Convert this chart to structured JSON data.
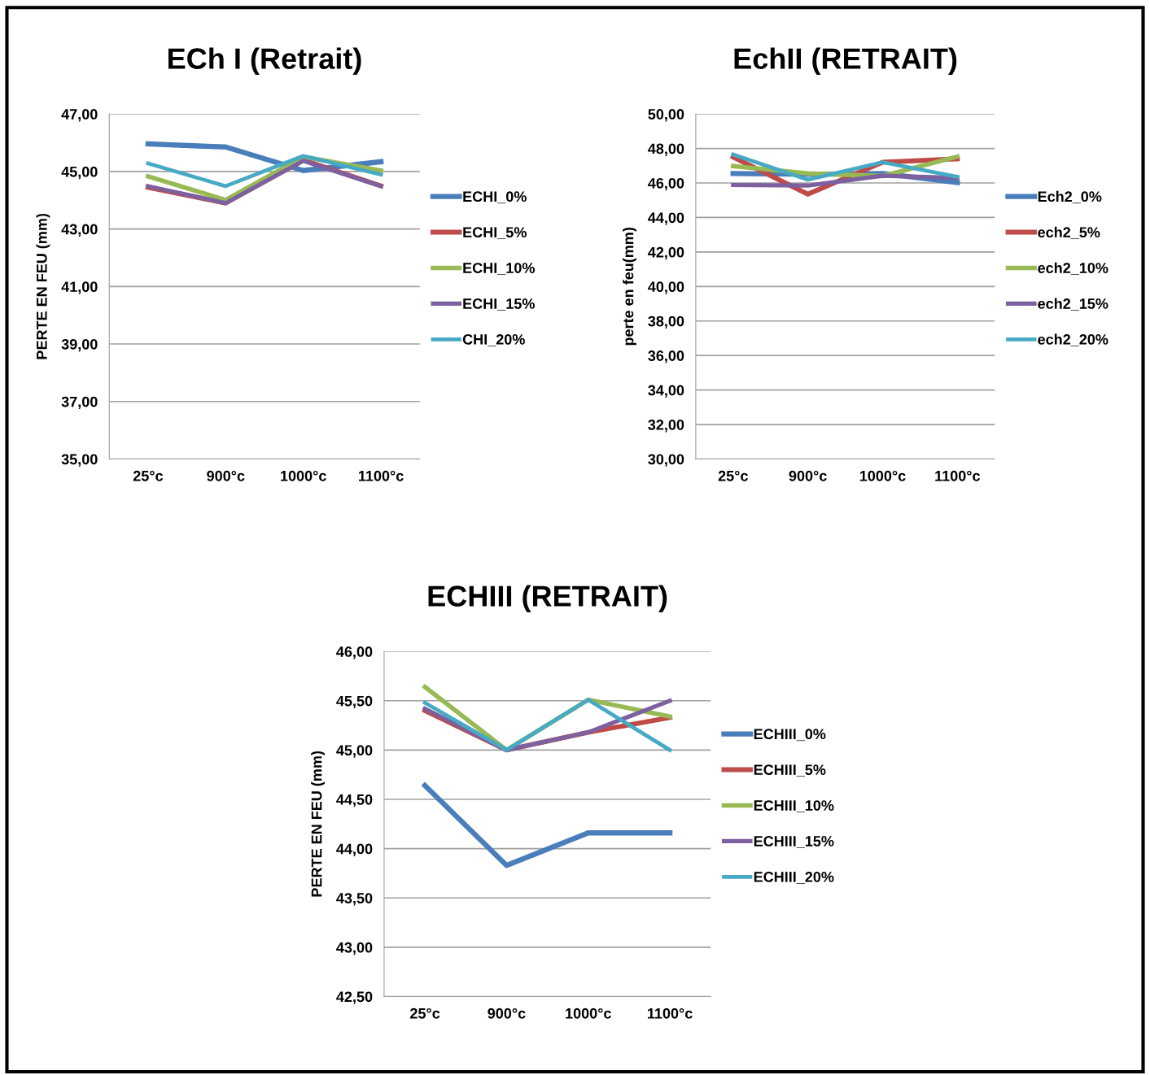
{
  "chart_data": [
    {
      "type": "line",
      "title": "ECh I (Retrait)",
      "ylabel": "PERTE EN FEU (mm)",
      "categories": [
        "25°c",
        "900°c",
        "1000°c",
        "1100°c"
      ],
      "series": [
        {
          "name": "ECHI_0%",
          "color": "#4a7ebb",
          "values": [
            45.96,
            45.85,
            45.03,
            45.34
          ]
        },
        {
          "name": "ECHI_5%",
          "color": "#be4b48",
          "values": [
            44.45,
            43.9,
            45.4,
            44.5
          ]
        },
        {
          "name": "ECHI_10%",
          "color": "#98b954",
          "values": [
            44.83,
            44.01,
            45.51,
            45.03
          ]
        },
        {
          "name": "ECHI_15%",
          "color": "#7d60a0",
          "values": [
            44.49,
            43.9,
            45.37,
            44.49
          ]
        },
        {
          "name": "CHI_20%",
          "color": "#46aac5",
          "values": [
            45.28,
            44.49,
            45.54,
            44.89
          ]
        }
      ],
      "ylim": [
        35,
        47
      ],
      "yticks": [
        {
          "value": 35,
          "label": "35,00"
        },
        {
          "value": 37,
          "label": "37,00"
        },
        {
          "value": 39,
          "label": "39,00"
        },
        {
          "value": 41,
          "label": "41,00"
        },
        {
          "value": 43,
          "label": "43,00"
        },
        {
          "value": 45,
          "label": "45,00"
        },
        {
          "value": 47,
          "label": "47,00"
        }
      ],
      "grid": "y",
      "legend": "right",
      "marker": "none",
      "line_style": "solid"
    },
    {
      "type": "line",
      "title": "EchII (RETRAIT)",
      "ylabel": "perte en feu(mm)",
      "categories": [
        "25°c",
        "900°c",
        "1000°c",
        "1100°c"
      ],
      "series": [
        {
          "name": "Ech2_0%",
          "color": "#4a7ebb",
          "values": [
            46.55,
            46.5,
            46.55,
            46.03
          ]
        },
        {
          "name": "ech2_5%",
          "color": "#be4b48",
          "values": [
            47.5,
            45.35,
            47.2,
            47.4
          ]
        },
        {
          "name": "ech2_10%",
          "color": "#98b954",
          "values": [
            46.98,
            46.55,
            46.4,
            47.53
          ]
        },
        {
          "name": "ech2_15%",
          "color": "#7d60a0",
          "values": [
            45.88,
            45.85,
            46.42,
            46.3
          ]
        },
        {
          "name": "ech2_20%",
          "color": "#46aac5",
          "values": [
            47.65,
            46.19,
            47.2,
            46.36
          ]
        }
      ],
      "ylim": [
        30,
        50
      ],
      "yticks": [
        {
          "value": 30,
          "label": "30,00"
        },
        {
          "value": 32,
          "label": "32,00"
        },
        {
          "value": 34,
          "label": "34,00"
        },
        {
          "value": 36,
          "label": "36,00"
        },
        {
          "value": 38,
          "label": "38,00"
        },
        {
          "value": 40,
          "label": "40,00"
        },
        {
          "value": 42,
          "label": "42,00"
        },
        {
          "value": 44,
          "label": "44,00"
        },
        {
          "value": 46,
          "label": "46,00"
        },
        {
          "value": 48,
          "label": "48,00"
        },
        {
          "value": 50,
          "label": "50,00"
        }
      ],
      "grid": "y",
      "legend": "right",
      "marker": "none",
      "line_style": "solid"
    },
    {
      "type": "line",
      "title": "ECHIII (RETRAIT)",
      "ylabel": "PERTE EN FEU (mm)",
      "categories": [
        "25°c",
        "900°c",
        "1000°c",
        "1100°c"
      ],
      "series": [
        {
          "name": "ECHIII_0%",
          "color": "#4a7ebb",
          "values": [
            44.64,
            43.83,
            44.16,
            44.16
          ]
        },
        {
          "name": "ECHIII_5%",
          "color": "#be4b48",
          "values": [
            45.4,
            45.0,
            45.18,
            45.33
          ]
        },
        {
          "name": "ECHIII_10%",
          "color": "#98b954",
          "values": [
            45.64,
            45.0,
            45.51,
            45.34
          ]
        },
        {
          "name": "ECHIII_15%",
          "color": "#7d60a0",
          "values": [
            45.42,
            45.0,
            45.18,
            45.5
          ]
        },
        {
          "name": "ECHIII_20%",
          "color": "#46aac5",
          "values": [
            45.48,
            45.0,
            45.51,
            45.0
          ]
        }
      ],
      "ylim": [
        42.5,
        46
      ],
      "yticks": [
        {
          "value": 42.5,
          "label": "42,50"
        },
        {
          "value": 43,
          "label": "43,00"
        },
        {
          "value": 43.5,
          "label": "43,50"
        },
        {
          "value": 44,
          "label": "44,00"
        },
        {
          "value": 44.5,
          "label": "44,50"
        },
        {
          "value": 45,
          "label": "45,00"
        },
        {
          "value": 45.5,
          "label": "45,50"
        },
        {
          "value": 46,
          "label": "46,00"
        }
      ],
      "grid": "y",
      "legend": "right",
      "marker": "none",
      "line_style": "solid"
    }
  ]
}
